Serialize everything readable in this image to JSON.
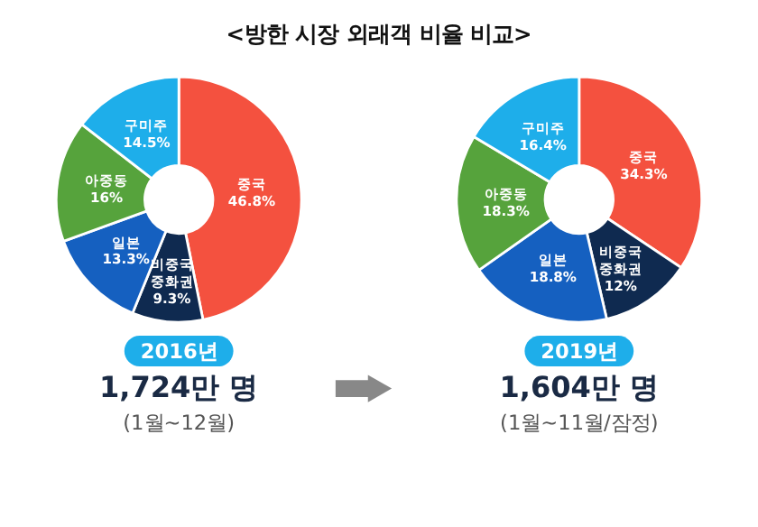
{
  "chart_data": [
    {
      "type": "donut",
      "title": "<방한 시장 외래객 비율 비교>",
      "categories": [
        "중국",
        "비중국 중화권",
        "일본",
        "아중동",
        "구미주"
      ],
      "values": [
        46.8,
        9.3,
        13.3,
        16,
        14.5
      ],
      "colors": [
        "#f4513f",
        "#0f2a50",
        "#1560c0",
        "#56a33c",
        "#1eaeea"
      ],
      "value_labels": [
        "46.8%",
        "9.3%",
        "13.3%",
        "16%",
        "14.5%"
      ],
      "legend": false,
      "annotations": [
        "2016년",
        "1,724만 명",
        "(1월~12월)"
      ]
    },
    {
      "type": "donut",
      "categories": [
        "중국",
        "비중국 중화권",
        "일본",
        "아중동",
        "구미주"
      ],
      "values": [
        34.3,
        12,
        18.8,
        18.3,
        16.4
      ],
      "colors": [
        "#f4513f",
        "#0f2a50",
        "#1560c0",
        "#56a33c",
        "#1eaeea"
      ],
      "value_labels": [
        "34.3%",
        "12%",
        "18.8%",
        "18.3%",
        "16.4%"
      ],
      "legend": false,
      "annotations": [
        "2019년",
        "1,604만 명",
        "(1월~11월/잠정)"
      ]
    }
  ]
}
